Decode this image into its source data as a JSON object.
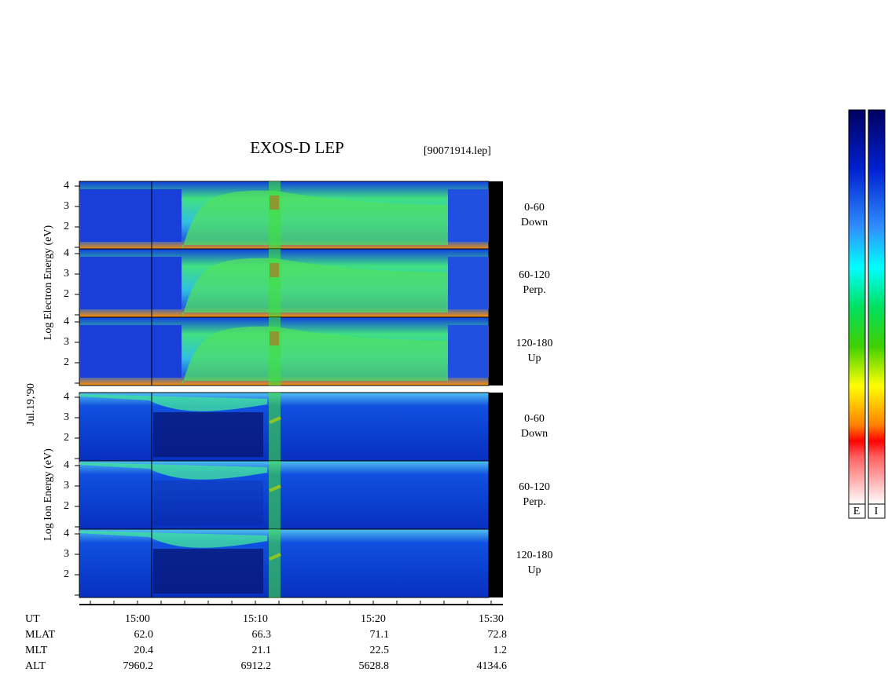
{
  "title": "EXOS-D LEP",
  "file_id": "[90071914.lep]",
  "date": "Jul.19,'90",
  "y_tick_labels": [
    "2",
    "3",
    "4"
  ],
  "groups": [
    {
      "axis_label": "Log Electron Energy (eV)",
      "panels": [
        {
          "angle": "0-60",
          "direction": "Down"
        },
        {
          "angle": "60-120",
          "direction": "Perp."
        },
        {
          "angle": "120-180",
          "direction": "Up"
        }
      ]
    },
    {
      "axis_label": "Log Ion Energy (eV)",
      "panels": [
        {
          "angle": "0-60",
          "direction": "Down"
        },
        {
          "angle": "60-120",
          "direction": "Perp."
        },
        {
          "angle": "120-180",
          "direction": "Up"
        }
      ]
    }
  ],
  "orbit": [
    {
      "label": "UT",
      "values": [
        "15:00",
        "15:10",
        "15:20",
        "15:30"
      ]
    },
    {
      "label": "MLAT",
      "values": [
        "62.0",
        "66.3",
        "71.1",
        "72.8"
      ]
    },
    {
      "label": "MLT",
      "values": [
        "20.4",
        "21.1",
        "22.5",
        "1.2"
      ]
    },
    {
      "label": "ALT",
      "values": [
        "7960.2",
        "6912.2",
        "5628.8",
        "4134.6"
      ]
    }
  ],
  "colorbar_labels": [
    "E",
    "I"
  ]
}
